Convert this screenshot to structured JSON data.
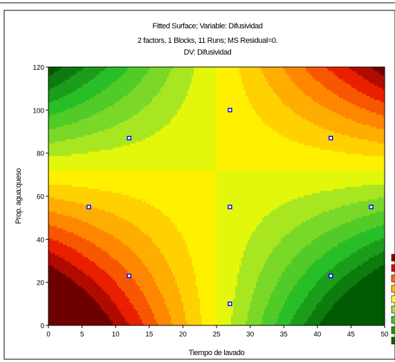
{
  "chart_data": {
    "type": "contour",
    "title": "Fitted Surface; Variable: Difusividad",
    "subtitle": "2 factors, 1 Blocks, 11 Runs; MS Residual=0.",
    "subtitle2": "DV: Difusividad",
    "xlabel": "Tiempo de lavado",
    "ylabel": "Prop. agua:queso",
    "xlim": [
      0,
      50
    ],
    "ylim": [
      0,
      120
    ],
    "xticks": [
      0,
      5,
      10,
      15,
      20,
      25,
      30,
      35,
      40,
      45,
      50
    ],
    "yticks": [
      0,
      20,
      40,
      60,
      80,
      100,
      120
    ],
    "saddle": {
      "x": 25,
      "y": 72
    },
    "surface": "saddle: high (red) toward lower-left and upper-right corners, low (green) toward upper-left and lower-right corners",
    "points": [
      {
        "x": 6,
        "y": 55
      },
      {
        "x": 12,
        "y": 23
      },
      {
        "x": 12,
        "y": 87
      },
      {
        "x": 27,
        "y": 10
      },
      {
        "x": 27,
        "y": 55
      },
      {
        "x": 27,
        "y": 100
      },
      {
        "x": 42,
        "y": 23
      },
      {
        "x": 42,
        "y": 87
      },
      {
        "x": 48,
        "y": 55
      }
    ],
    "colors": {
      "low": "#006400",
      "mid_low": "#2ecc2e",
      "mid": "#ffff00",
      "mid_high": "#ff8c00",
      "high": "#7a0000"
    },
    "legend_swatches": [
      "#8b0000",
      "#e00000",
      "#ff6600",
      "#ffbb00",
      "#ffff33",
      "#9ae62e",
      "#33cc33",
      "#00a000",
      "#006400"
    ]
  }
}
